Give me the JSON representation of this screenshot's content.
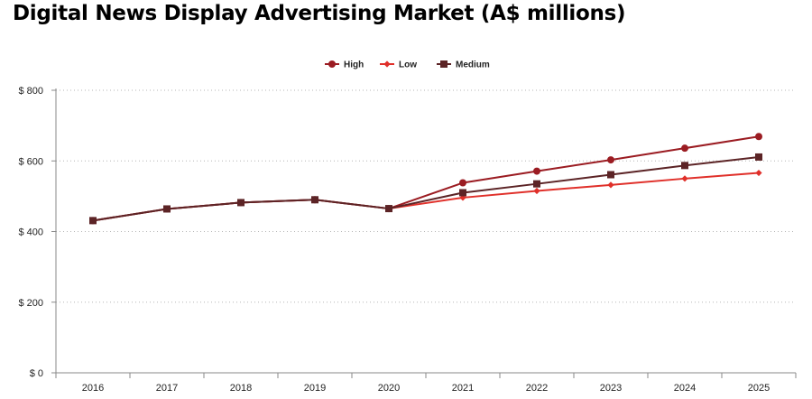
{
  "chart_data": {
    "type": "line",
    "title": "Digital News Display Advertising Market (A$ millions)",
    "x": [
      "2016",
      "2017",
      "2018",
      "2019",
      "2020",
      "2021",
      "2022",
      "2023",
      "2024",
      "2025"
    ],
    "series": [
      {
        "name": "High",
        "color": "#9b1c22",
        "marker": "circle",
        "values": [
          431,
          464,
          482,
          490,
          465,
          538,
          571,
          603,
          636,
          669
        ]
      },
      {
        "name": "Low",
        "color": "#e0302a",
        "marker": "diamond",
        "values": [
          431,
          464,
          482,
          490,
          465,
          496,
          515,
          532,
          550,
          566
        ]
      },
      {
        "name": "Medium",
        "color": "#5c2426",
        "marker": "square",
        "values": [
          431,
          464,
          482,
          490,
          465,
          510,
          535,
          561,
          587,
          611
        ]
      }
    ],
    "yticks": [
      0,
      200,
      400,
      600,
      800
    ],
    "ytick_labels": [
      "$ 0",
      "$ 200",
      "$ 400",
      "$ 600",
      "$ 800"
    ],
    "ylim": [
      0,
      800
    ],
    "xlabel": "",
    "ylabel": "",
    "grid": true,
    "legend_position": "top-center"
  }
}
